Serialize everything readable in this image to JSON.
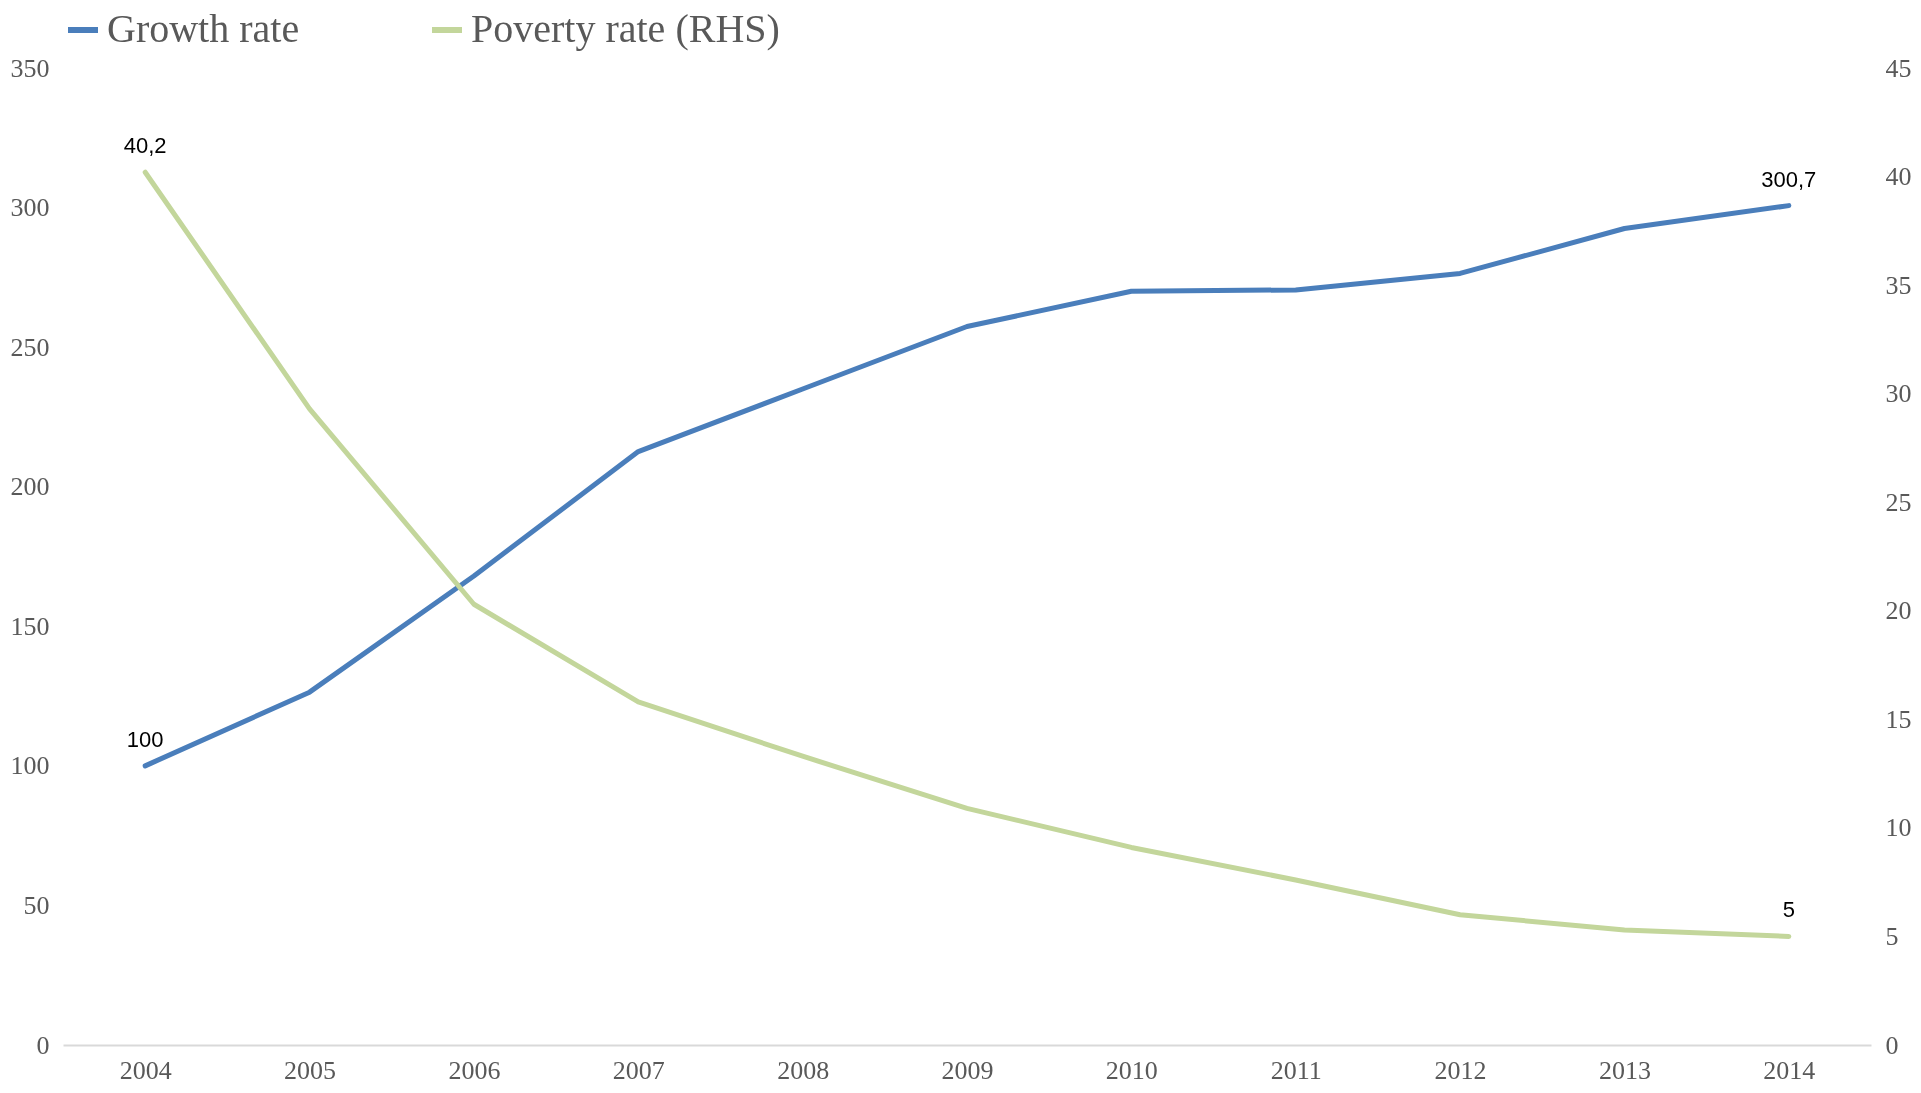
{
  "chart_data": {
    "type": "line",
    "categories": [
      "2004",
      "2005",
      "2006",
      "2007",
      "2008",
      "2009",
      "2010",
      "2011",
      "2012",
      "2013",
      "2014"
    ],
    "series": [
      {
        "name": "Growth rate",
        "color": "#4a7ebb",
        "values": [
          100,
          126.4,
          168,
          212.6,
          235,
          257.4,
          270,
          270.5,
          276.4,
          292.5,
          300.7
        ],
        "value_labels": [
          "100",
          null,
          null,
          null,
          null,
          null,
          null,
          null,
          null,
          null,
          "300,7"
        ]
      },
      {
        "name": "Poverty rate (RHS)",
        "color": "#c3d69b",
        "axis": "y2",
        "values": [
          40.2,
          29.3,
          20.3,
          15.8,
          13.3,
          10.9,
          9.1,
          7.6,
          6.0,
          5.3,
          5
        ],
        "value_labels": [
          "40,2",
          null,
          null,
          null,
          null,
          null,
          null,
          null,
          null,
          null,
          "5"
        ]
      }
    ],
    "ylim": [
      0,
      350
    ],
    "yticks": [
      0,
      50,
      100,
      150,
      200,
      250,
      300,
      350
    ],
    "y2lim": [
      0,
      45
    ],
    "y2ticks": [
      0,
      5,
      10,
      15,
      20,
      25,
      30,
      35,
      40,
      45
    ],
    "legend": "top",
    "marker": "none",
    "line_style": "solid",
    "grid": false
  }
}
